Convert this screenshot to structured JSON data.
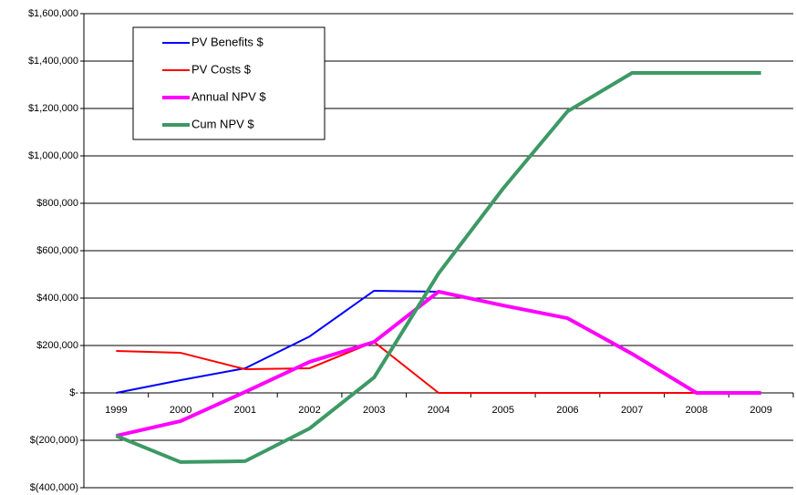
{
  "chart_data": {
    "type": "line",
    "categories": [
      "1999",
      "2000",
      "2001",
      "2002",
      "2003",
      "2004",
      "2005",
      "2006",
      "2007",
      "2008",
      "2009"
    ],
    "series": [
      {
        "name": "PV Benefits $",
        "color": "#0000ff",
        "line_width": 2,
        "values": [
          0,
          54000,
          104000,
          238000,
          431000,
          427000,
          369000,
          315000,
          165000,
          0,
          0
        ]
      },
      {
        "name": "PV Costs $",
        "color": "#ff0000",
        "line_width": 2,
        "values": [
          177000,
          169000,
          100000,
          104000,
          215000,
          0,
          0,
          0,
          0,
          0,
          0
        ]
      },
      {
        "name": "Annual NPV $",
        "color": "#ff00ff",
        "line_width": 4,
        "values": [
          -181000,
          -119000,
          4000,
          131000,
          215000,
          427000,
          369000,
          315000,
          165000,
          0,
          0
        ]
      },
      {
        "name": "Cum NPV $",
        "color": "#3d9965",
        "line_width": 4,
        "values": [
          -181000,
          -292000,
          -288000,
          -150000,
          65000,
          504000,
          862000,
          1188000,
          1350000,
          1350000,
          1350000
        ]
      }
    ],
    "ylim": [
      -400000,
      1600000
    ],
    "yticks": [
      {
        "value": -400000,
        "label": "$(400,000)"
      },
      {
        "value": -200000,
        "label": "$(200,000)"
      },
      {
        "value": 0,
        "label": "$-"
      },
      {
        "value": 200000,
        "label": "$200,000"
      },
      {
        "value": 400000,
        "label": "$400,000"
      },
      {
        "value": 600000,
        "label": "$600,000"
      },
      {
        "value": 800000,
        "label": "$800,000"
      },
      {
        "value": 1000000,
        "label": "$1,000,000"
      },
      {
        "value": 1200000,
        "label": "$1,200,000"
      },
      {
        "value": 1400000,
        "label": "$1,400,000"
      },
      {
        "value": 1600000,
        "label": "$1,600,000"
      }
    ],
    "grid": true
  }
}
